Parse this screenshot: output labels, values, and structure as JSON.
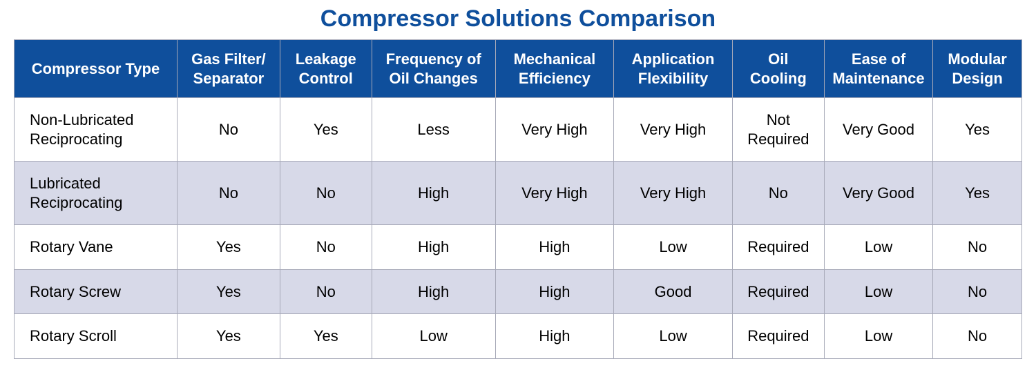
{
  "title": "Compressor Solutions Comparison",
  "title_color": "#0f4f9c",
  "title_fontsize": 34,
  "header_bg": "#0f4f9c",
  "header_text_color": "#ffffff",
  "header_fontsize": 22,
  "body_fontsize": 22,
  "row_alt_bg": "#d7d9e8",
  "row_bg": "#ffffff",
  "border_color": "#a7a9b8",
  "border_width": 1,
  "col_widths_pct": [
    16.5,
    10.4,
    9.3,
    12.5,
    12,
    12,
    9.3,
    11,
    9
  ],
  "columns": [
    "Compressor Type",
    "Gas Filter/ Separator",
    "Leakage Control",
    "Frequency of Oil Changes",
    "Mechanical Efficiency",
    "Application Flexibility",
    "Oil Cooling",
    "Ease of Maintenance",
    "Modular Design"
  ],
  "rows": [
    {
      "label": "Non-Lubricated Reciprocating",
      "cells": [
        "No",
        "Yes",
        "Less",
        "Very High",
        "Very High",
        "Not Required",
        "Very Good",
        "Yes"
      ]
    },
    {
      "label": "Lubricated Reciprocating",
      "cells": [
        "No",
        "No",
        "High",
        "Very High",
        "Very High",
        "No",
        "Very Good",
        "Yes"
      ]
    },
    {
      "label": "Rotary Vane",
      "cells": [
        "Yes",
        "No",
        "High",
        "High",
        "Low",
        "Required",
        "Low",
        "No"
      ]
    },
    {
      "label": "Rotary Screw",
      "cells": [
        "Yes",
        "No",
        "High",
        "High",
        "Good",
        "Required",
        "Low",
        "No"
      ]
    },
    {
      "label": "Rotary Scroll",
      "cells": [
        "Yes",
        "Yes",
        "Low",
        "High",
        "Low",
        "Required",
        "Low",
        "No"
      ]
    }
  ]
}
